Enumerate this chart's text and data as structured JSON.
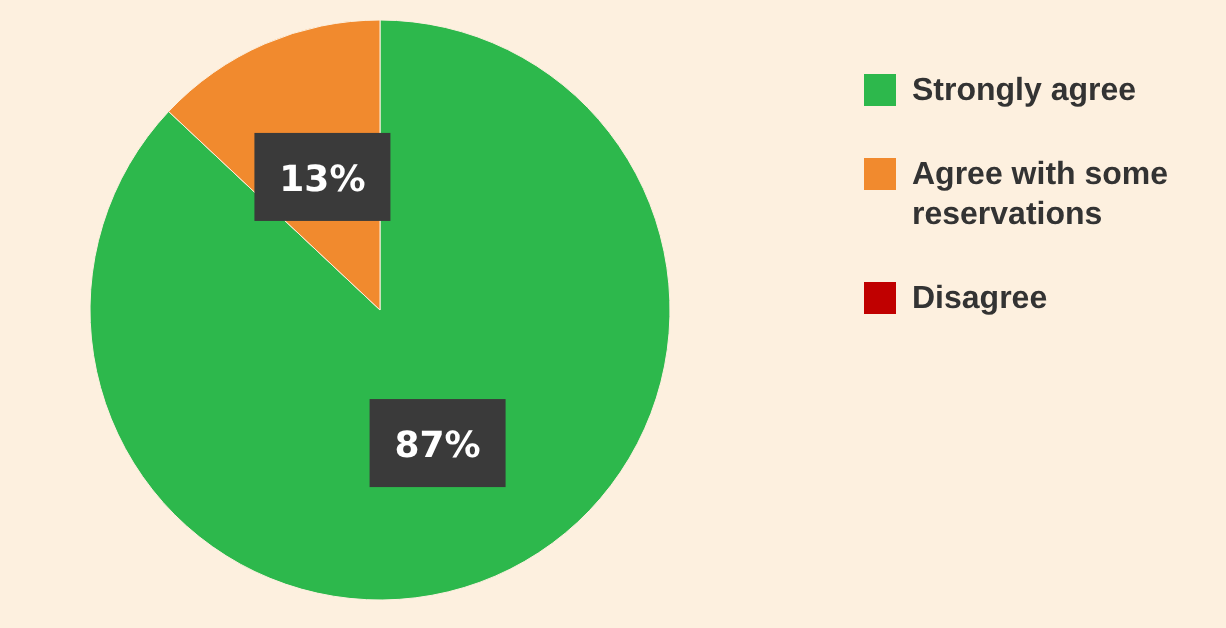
{
  "chart_data": {
    "type": "pie",
    "categories": [
      "Strongly agree",
      "Agree with some reservations",
      "Disagree"
    ],
    "values": [
      87,
      13,
      0
    ],
    "colors": [
      "#2db84c",
      "#f18a2e",
      "#c00000"
    ],
    "value_labels": [
      "87%",
      "13%",
      null
    ],
    "legend": "right"
  }
}
